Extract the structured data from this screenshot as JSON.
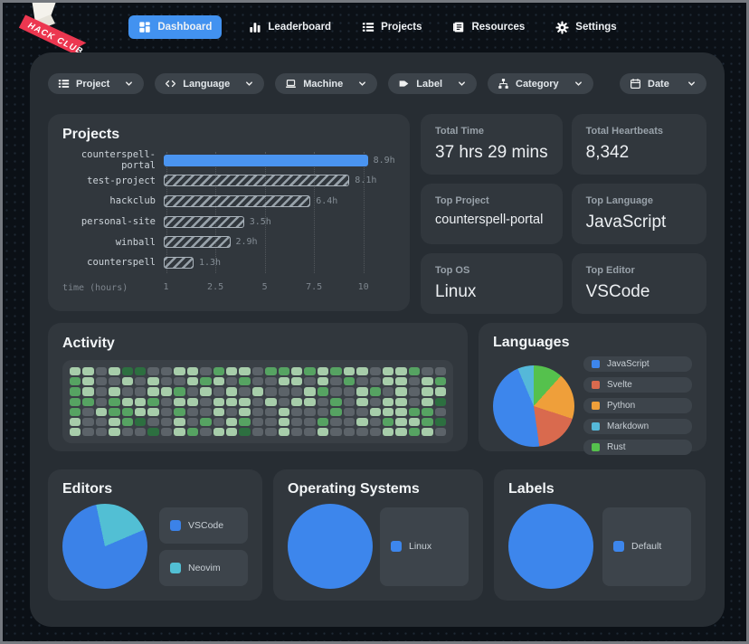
{
  "nav": {
    "logo": {
      "name": "hack-club-flag",
      "text": "HACK CLUB"
    },
    "items": [
      {
        "label": "Dashboard",
        "icon": "dashboard-grid-icon",
        "active": true
      },
      {
        "label": "Leaderboard",
        "icon": "bar-chart-icon",
        "active": false
      },
      {
        "label": "Projects",
        "icon": "list-icon",
        "active": false
      },
      {
        "label": "Resources",
        "icon": "book-icon",
        "active": false
      },
      {
        "label": "Settings",
        "icon": "gear-icon",
        "active": false
      }
    ],
    "active_color": "#4292f0"
  },
  "filters": {
    "items": [
      {
        "label": "Project",
        "icon": "list-icon"
      },
      {
        "label": "Language",
        "icon": "code-icon"
      },
      {
        "label": "Machine",
        "icon": "laptop-icon"
      },
      {
        "label": "Label",
        "icon": "tag-icon"
      },
      {
        "label": "Category",
        "icon": "category-icon"
      }
    ],
    "date": {
      "label": "Date",
      "icon": "calendar-icon"
    }
  },
  "stats": [
    {
      "label": "Total Time",
      "value": "37 hrs 29 mins"
    },
    {
      "label": "Total Heartbeats",
      "value": "8,342"
    },
    {
      "label": "Top Project",
      "value": "counterspell-portal"
    },
    {
      "label": "Top Language",
      "value": "JavaScript"
    },
    {
      "label": "Top OS",
      "value": "Linux"
    },
    {
      "label": "Top Editor",
      "value": "VSCode"
    }
  ],
  "chart_data": [
    {
      "type": "bar",
      "title": "Projects",
      "orientation": "horizontal",
      "categories": [
        "counterspell-portal",
        "test-project",
        "hackclub",
        "personal-site",
        "winball",
        "counterspell"
      ],
      "values": [
        8.9,
        8.1,
        6.4,
        3.5,
        2.9,
        1.3
      ],
      "value_labels": [
        "8.9h",
        "8.1h",
        "6.4h",
        "3.5h",
        "2.9h",
        "1.3h"
      ],
      "styles": [
        "solid",
        "hatch",
        "hatch",
        "hatch",
        "hatch",
        "hatch"
      ],
      "solid_color": "#4a94f0",
      "hatch_color": "#97a1a9",
      "xlabel": "time (hours)",
      "ticks": [
        "1",
        "2.5",
        "5",
        "7.5",
        "10"
      ],
      "xlim": [
        0,
        10.1
      ],
      "grid": "dotted-vertical"
    },
    {
      "type": "heatmap",
      "title": "Activity",
      "rows": 7,
      "cols": 29,
      "levels": [
        "11013300110211022121211011200",
        "21001010012102001101020011012",
        "21010011201010100012001201011",
        "22021120110111010110201011013",
        "20122110200101001000200111220",
        "10012300102012001002001021123",
        "10010030120113001001000011210"
      ],
      "palette": {
        "0": "#5c6369",
        "1": "#a7cdaa",
        "2": "#56a362",
        "3": "#2d6f40"
      }
    },
    {
      "type": "pie",
      "title": "Languages",
      "rotate_deg": 0,
      "slices": [
        {
          "label": "JavaScript",
          "color": "#3d86ec",
          "percent": 46,
          "start_deg": 172,
          "end_deg": 337
        },
        {
          "label": "Svelte",
          "color": "#d96a4e",
          "percent": 18,
          "start_deg": 108,
          "end_deg": 172
        },
        {
          "label": "Python",
          "color": "#ef9f3a",
          "percent": 18,
          "start_deg": 42,
          "end_deg": 108
        },
        {
          "label": "Markdown",
          "color": "#55b8d9",
          "percent": 6,
          "start_deg": 337,
          "end_deg": 360
        },
        {
          "label": "Rust",
          "color": "#55c14d",
          "percent": 12,
          "start_deg": 0,
          "end_deg": 42
        }
      ],
      "legend_position": "right"
    },
    {
      "type": "pie",
      "title": "Editors",
      "rotate_deg": -12,
      "slices": [
        {
          "label": "VSCode",
          "color": "#3b82e8",
          "percent": 78,
          "start_deg": 79,
          "end_deg": 360
        },
        {
          "label": "Neovim",
          "color": "#52bfd4",
          "percent": 22,
          "start_deg": 0,
          "end_deg": 79
        }
      ],
      "legend_position": "right"
    },
    {
      "type": "pie",
      "title": "Operating Systems",
      "rotate_deg": 0,
      "slices": [
        {
          "label": "Linux",
          "color": "#3d86ec",
          "percent": 100,
          "start_deg": 0,
          "end_deg": 360
        }
      ],
      "legend_position": "right"
    },
    {
      "type": "pie",
      "title": "Labels",
      "rotate_deg": 0,
      "slices": [
        {
          "label": "Default",
          "color": "#3d86ec",
          "percent": 100,
          "start_deg": 0,
          "end_deg": 360
        }
      ],
      "legend_position": "right"
    }
  ]
}
